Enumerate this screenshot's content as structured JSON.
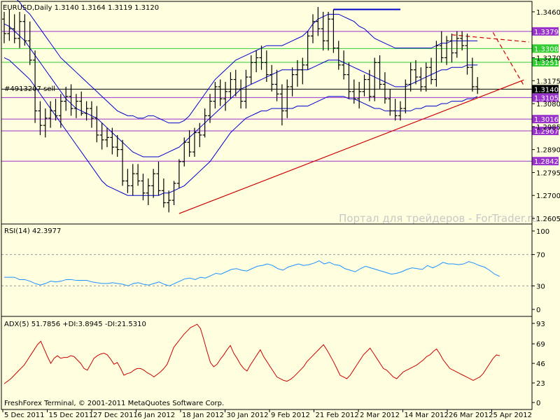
{
  "header": {
    "symbol_info": "EURUSD,Daily  1.3140 1.3164 1.3119 1.3120",
    "order_label": "#4913207 sell",
    "watermark": "Портал для трейдеров - ForTrader.ru",
    "copyright": "FreshForex Terminal, © 2001-2011 MetaQuotes Software Corp."
  },
  "colors": {
    "background": "#FFFFE0",
    "bars": "#000000",
    "ma_blue": "#0000CD",
    "level_green": "#33CC33",
    "level_purple": "#9933CC",
    "trend_red": "#CC0000",
    "rsi_line": "#1E90FF",
    "adx_line": "#CC0000",
    "order_line": "#000000"
  },
  "chart_data": [
    {
      "type": "line",
      "title": "EURUSD,Daily",
      "price_ticks": [
        "1.3460",
        "1.3270",
        "1.3175",
        "1.3080",
        "1.2985",
        "1.2890",
        "1.2795",
        "1.2700",
        "1.2605"
      ],
      "ylim": [
        1.2605,
        1.348
      ],
      "x_labels": [
        "5 Dec 2011",
        "15 Dec 2011",
        "27 Dec 2011",
        "6 Jan 2012",
        "18 Jan 2012",
        "30 Jan 2012",
        "9 Feb 2012",
        "21 Feb 2012",
        "2 Mar 2012",
        "14 Mar 2012",
        "26 Mar 2012",
        "5 Apr 2012"
      ],
      "levels": [
        {
          "value": 1.3379,
          "label": "1.3379",
          "kind": "purple"
        },
        {
          "value": 1.3308,
          "label": "1.3308",
          "kind": "green"
        },
        {
          "value": 1.3251,
          "label": "1.3251",
          "kind": "green"
        },
        {
          "value": 1.314,
          "label": "1.3140",
          "kind": "black"
        },
        {
          "value": 1.3105,
          "label": "1.3105",
          "kind": "purple"
        },
        {
          "value": 1.3016,
          "label": "1.3016",
          "kind": "purple"
        },
        {
          "value": 1.2967,
          "label": "1.2967",
          "kind": "purple"
        },
        {
          "value": 1.2842,
          "label": "1.2842",
          "kind": "purple"
        }
      ],
      "bars": [
        [
          1.343,
          1.346,
          1.333,
          1.337
        ],
        [
          1.337,
          1.347,
          1.334,
          1.339
        ],
        [
          1.339,
          1.345,
          1.333,
          1.335
        ],
        [
          1.335,
          1.346,
          1.331,
          1.342
        ],
        [
          1.342,
          1.345,
          1.332,
          1.334
        ],
        [
          1.334,
          1.342,
          1.324,
          1.326
        ],
        [
          1.326,
          1.33,
          1.3,
          1.305
        ],
        [
          1.305,
          1.309,
          1.295,
          1.299
        ],
        [
          1.299,
          1.306,
          1.294,
          1.302
        ],
        [
          1.302,
          1.309,
          1.298,
          1.305
        ],
        [
          1.305,
          1.31,
          1.301,
          1.303
        ],
        [
          1.303,
          1.312,
          1.298,
          1.309
        ],
        [
          1.309,
          1.315,
          1.305,
          1.311
        ],
        [
          1.311,
          1.316,
          1.303,
          1.306
        ],
        [
          1.306,
          1.312,
          1.302,
          1.309
        ],
        [
          1.309,
          1.313,
          1.303,
          1.304
        ],
        [
          1.304,
          1.309,
          1.301,
          1.306
        ],
        [
          1.306,
          1.309,
          1.298,
          1.302
        ],
        [
          1.302,
          1.307,
          1.292,
          1.295
        ],
        [
          1.295,
          1.3,
          1.289,
          1.293
        ],
        [
          1.293,
          1.298,
          1.29,
          1.294
        ],
        [
          1.294,
          1.298,
          1.287,
          1.29
        ],
        [
          1.29,
          1.295,
          1.286,
          1.289
        ],
        [
          1.289,
          1.293,
          1.274,
          1.276
        ],
        [
          1.276,
          1.281,
          1.271,
          1.274
        ],
        [
          1.274,
          1.283,
          1.27,
          1.279
        ],
        [
          1.279,
          1.283,
          1.274,
          1.276
        ],
        [
          1.276,
          1.279,
          1.268,
          1.271
        ],
        [
          1.271,
          1.277,
          1.266,
          1.274
        ],
        [
          1.274,
          1.281,
          1.269,
          1.279
        ],
        [
          1.279,
          1.284,
          1.27,
          1.272
        ],
        [
          1.272,
          1.277,
          1.265,
          1.267
        ],
        [
          1.267,
          1.272,
          1.263,
          1.268
        ],
        [
          1.268,
          1.276,
          1.266,
          1.275
        ],
        [
          1.275,
          1.285,
          1.273,
          1.284
        ],
        [
          1.284,
          1.294,
          1.282,
          1.292
        ],
        [
          1.292,
          1.297,
          1.286,
          1.288
        ],
        [
          1.288,
          1.298,
          1.286,
          1.296
        ],
        [
          1.296,
          1.3,
          1.29,
          1.295
        ],
        [
          1.295,
          1.306,
          1.294,
          1.303
        ],
        [
          1.303,
          1.312,
          1.3,
          1.309
        ],
        [
          1.309,
          1.317,
          1.306,
          1.315
        ],
        [
          1.315,
          1.318,
          1.307,
          1.31
        ],
        [
          1.31,
          1.317,
          1.305,
          1.313
        ],
        [
          1.313,
          1.321,
          1.31,
          1.318
        ],
        [
          1.318,
          1.322,
          1.311,
          1.314
        ],
        [
          1.314,
          1.318,
          1.306,
          1.309
        ],
        [
          1.309,
          1.322,
          1.306,
          1.319
        ],
        [
          1.319,
          1.328,
          1.316,
          1.325
        ],
        [
          1.325,
          1.33,
          1.321,
          1.327
        ],
        [
          1.327,
          1.332,
          1.322,
          1.325
        ],
        [
          1.325,
          1.33,
          1.317,
          1.32
        ],
        [
          1.32,
          1.324,
          1.313,
          1.316
        ],
        [
          1.316,
          1.322,
          1.309,
          1.312
        ],
        [
          1.312,
          1.316,
          1.299,
          1.305
        ],
        [
          1.305,
          1.318,
          1.302,
          1.315
        ],
        [
          1.315,
          1.323,
          1.311,
          1.32
        ],
        [
          1.32,
          1.326,
          1.315,
          1.322
        ],
        [
          1.322,
          1.327,
          1.316,
          1.324
        ],
        [
          1.324,
          1.338,
          1.322,
          1.336
        ],
        [
          1.336,
          1.345,
          1.333,
          1.342
        ],
        [
          1.342,
          1.348,
          1.336,
          1.339
        ],
        [
          1.339,
          1.346,
          1.33,
          1.334
        ],
        [
          1.334,
          1.346,
          1.33,
          1.343
        ],
        [
          1.343,
          1.347,
          1.329,
          1.331
        ],
        [
          1.331,
          1.334,
          1.322,
          1.324
        ],
        [
          1.324,
          1.33,
          1.318,
          1.32
        ],
        [
          1.32,
          1.325,
          1.31,
          1.313
        ],
        [
          1.313,
          1.318,
          1.308,
          1.31
        ],
        [
          1.31,
          1.317,
          1.306,
          1.313
        ],
        [
          1.313,
          1.32,
          1.311,
          1.318
        ],
        [
          1.318,
          1.322,
          1.309,
          1.311
        ],
        [
          1.311,
          1.327,
          1.309,
          1.325
        ],
        [
          1.325,
          1.328,
          1.314,
          1.316
        ],
        [
          1.316,
          1.321,
          1.308,
          1.31
        ],
        [
          1.31,
          1.314,
          1.303,
          1.305
        ],
        [
          1.305,
          1.31,
          1.301,
          1.303
        ],
        [
          1.303,
          1.309,
          1.301,
          1.306
        ],
        [
          1.306,
          1.318,
          1.304,
          1.316
        ],
        [
          1.316,
          1.325,
          1.313,
          1.322
        ],
        [
          1.322,
          1.326,
          1.316,
          1.319
        ],
        [
          1.319,
          1.323,
          1.313,
          1.315
        ],
        [
          1.315,
          1.325,
          1.313,
          1.323
        ],
        [
          1.323,
          1.327,
          1.316,
          1.318
        ],
        [
          1.318,
          1.334,
          1.315,
          1.332
        ],
        [
          1.332,
          1.338,
          1.325,
          1.327
        ],
        [
          1.327,
          1.336,
          1.324,
          1.334
        ],
        [
          1.334,
          1.337,
          1.325,
          1.329
        ],
        [
          1.329,
          1.338,
          1.327,
          1.335
        ],
        [
          1.335,
          1.338,
          1.33,
          1.332
        ],
        [
          1.332,
          1.337,
          1.32,
          1.323
        ],
        [
          1.323,
          1.327,
          1.313,
          1.315
        ],
        [
          1.315,
          1.319,
          1.312,
          1.314
        ]
      ],
      "bollinger": {
        "upper": [
          1.355,
          1.354,
          1.352,
          1.35,
          1.347,
          1.345,
          1.342,
          1.339,
          1.336,
          1.333,
          1.33,
          1.327,
          1.325,
          1.323,
          1.321,
          1.319,
          1.317,
          1.315,
          1.313,
          1.311,
          1.309,
          1.307,
          1.305,
          1.304,
          1.303,
          1.303,
          1.302,
          1.302,
          1.303,
          1.303,
          1.302,
          1.301,
          1.3,
          1.3,
          1.3,
          1.301,
          1.303,
          1.306,
          1.309,
          1.312,
          1.315,
          1.318,
          1.32,
          1.322,
          1.324,
          1.326,
          1.327,
          1.328,
          1.329,
          1.33,
          1.331,
          1.332,
          1.332,
          1.332,
          1.332,
          1.333,
          1.334,
          1.335,
          1.336,
          1.338,
          1.341,
          1.343,
          1.344,
          1.345,
          1.345,
          1.345,
          1.344,
          1.343,
          1.342,
          1.34,
          1.339,
          1.337,
          1.335,
          1.334,
          1.333,
          1.332,
          1.331,
          1.331,
          1.331,
          1.331,
          1.331,
          1.331,
          1.331,
          1.331,
          1.332,
          1.333,
          1.333,
          1.334,
          1.334,
          1.334,
          1.334,
          1.334,
          1.334
        ],
        "middle": [
          1.341,
          1.34,
          1.338,
          1.336,
          1.334,
          1.331,
          1.328,
          1.325,
          1.322,
          1.319,
          1.316,
          1.313,
          1.31,
          1.308,
          1.306,
          1.305,
          1.304,
          1.303,
          1.302,
          1.3,
          1.298,
          1.296,
          1.294,
          1.292,
          1.29,
          1.288,
          1.287,
          1.286,
          1.286,
          1.286,
          1.286,
          1.287,
          1.288,
          1.289,
          1.29,
          1.292,
          1.294,
          1.296,
          1.298,
          1.3,
          1.302,
          1.304,
          1.306,
          1.308,
          1.31,
          1.312,
          1.314,
          1.315,
          1.316,
          1.317,
          1.318,
          1.319,
          1.32,
          1.321,
          1.322,
          1.322,
          1.322,
          1.322,
          1.322,
          1.322,
          1.323,
          1.324,
          1.325,
          1.326,
          1.326,
          1.326,
          1.325,
          1.324,
          1.323,
          1.322,
          1.321,
          1.32,
          1.319,
          1.318,
          1.317,
          1.316,
          1.315,
          1.315,
          1.315,
          1.316,
          1.317,
          1.318,
          1.319,
          1.32,
          1.321,
          1.322,
          1.322,
          1.323,
          1.323,
          1.323,
          1.324,
          1.324,
          1.324
        ],
        "lower": [
          1.327,
          1.326,
          1.324,
          1.322,
          1.32,
          1.318,
          1.315,
          1.312,
          1.309,
          1.306,
          1.303,
          1.3,
          1.297,
          1.294,
          1.291,
          1.288,
          1.285,
          1.282,
          1.279,
          1.276,
          1.274,
          1.273,
          1.272,
          1.271,
          1.27,
          1.27,
          1.27,
          1.27,
          1.27,
          1.27,
          1.27,
          1.271,
          1.271,
          1.272,
          1.273,
          1.274,
          1.276,
          1.278,
          1.28,
          1.282,
          1.284,
          1.287,
          1.29,
          1.293,
          1.296,
          1.298,
          1.3,
          1.302,
          1.303,
          1.304,
          1.305,
          1.305,
          1.306,
          1.306,
          1.306,
          1.306,
          1.306,
          1.307,
          1.307,
          1.307,
          1.308,
          1.309,
          1.31,
          1.311,
          1.311,
          1.311,
          1.311,
          1.31,
          1.31,
          1.309,
          1.308,
          1.307,
          1.306,
          1.306,
          1.305,
          1.305,
          1.305,
          1.305,
          1.305,
          1.305,
          1.306,
          1.306,
          1.307,
          1.307,
          1.307,
          1.308,
          1.308,
          1.309,
          1.309,
          1.309,
          1.31,
          1.31,
          1.311
        ]
      },
      "trendlines": [
        {
          "from": [
            34,
            1.2625
          ],
          "to": [
            101,
            1.3178
          ],
          "style": "solid"
        },
        {
          "from": [
            87,
            1.3365
          ],
          "to": [
            102,
            1.3335
          ],
          "style": "dashed"
        },
        {
          "from": [
            95,
            1.3375
          ],
          "to": [
            101,
            1.3155
          ],
          "style": "dashed"
        },
        {
          "from": [
            64,
            1.347
          ],
          "to": [
            77,
            1.347
          ],
          "style": "solid-blue"
        }
      ]
    },
    {
      "type": "line",
      "title": "RSI(14) 42.3977",
      "y_ticks": [
        "100",
        "70",
        "30",
        "0"
      ],
      "ylim": [
        0,
        100
      ],
      "levels": [
        70,
        30
      ],
      "values": [
        41,
        41,
        41,
        38,
        38,
        36,
        33,
        31,
        33,
        36,
        35,
        36,
        38,
        38,
        37,
        37,
        37,
        35,
        34,
        33,
        33,
        34,
        33,
        32,
        30,
        33,
        34,
        32,
        31,
        33,
        35,
        32,
        30,
        33,
        36,
        39,
        40,
        38,
        41,
        40,
        43,
        46,
        45,
        48,
        51,
        52,
        50,
        49,
        52,
        55,
        56,
        58,
        56,
        52,
        50,
        54,
        56,
        58,
        56,
        57,
        59,
        62,
        58,
        60,
        57,
        56,
        52,
        50,
        48,
        52,
        55,
        53,
        51,
        49,
        47,
        45,
        46,
        48,
        51,
        53,
        52,
        51,
        56,
        53,
        56,
        60,
        58,
        58,
        57,
        58,
        61,
        59,
        56,
        54,
        50,
        45,
        42
      ]
    },
    {
      "type": "line",
      "title": "ADX(5) 51.7856 +DI:3.8945 -DI:21.5310",
      "y_ticks": [
        "93",
        "69",
        "46",
        "23",
        "0"
      ],
      "ylim": [
        0,
        93
      ],
      "values": [
        22,
        25,
        28,
        32,
        36,
        40,
        44,
        50,
        56,
        62,
        68,
        72,
        63,
        54,
        46,
        52,
        55,
        52,
        53,
        53,
        55,
        54,
        50,
        46,
        40,
        38,
        45,
        52,
        55,
        57,
        58,
        56,
        51,
        45,
        47,
        40,
        32,
        34,
        35,
        38,
        40,
        40,
        38,
        35,
        33,
        30,
        33,
        36,
        40,
        45,
        55,
        65,
        70,
        75,
        80,
        84,
        88,
        90,
        92,
        87,
        74,
        60,
        47,
        42,
        45,
        51,
        56,
        62,
        67,
        58,
        52,
        45,
        40,
        37,
        44,
        50,
        56,
        62,
        54,
        48,
        42,
        36,
        30,
        28,
        26,
        25,
        27,
        30,
        34,
        38,
        42,
        48,
        52,
        56,
        60,
        64,
        68,
        62,
        55,
        48,
        40,
        32,
        30,
        28,
        32,
        38,
        44,
        50,
        56,
        60,
        64,
        58,
        52,
        46,
        40,
        38,
        34,
        30,
        28,
        32,
        36,
        38,
        40,
        42,
        44,
        47,
        50,
        54,
        56,
        60,
        63,
        57,
        50,
        45,
        40,
        38,
        36,
        34,
        32,
        30,
        28,
        26,
        28,
        30,
        34,
        40,
        46,
        52,
        56,
        55
      ]
    }
  ]
}
